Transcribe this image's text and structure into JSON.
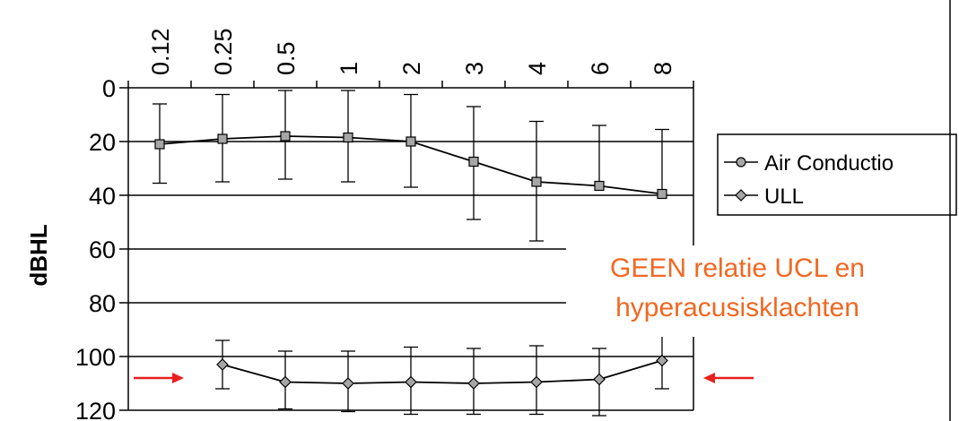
{
  "chart_data": {
    "type": "line",
    "x_axis_position": "top",
    "categories": [
      "0.12",
      "0.25",
      "0.5",
      "1",
      "2",
      "3",
      "4",
      "6",
      "8"
    ],
    "ylabel": "dBHL",
    "ylim": [
      0,
      120
    ],
    "y_inverted": true,
    "y_ticks": [
      "0",
      "20",
      "40",
      "60",
      "80",
      "100",
      "120"
    ],
    "grid": "horizontal",
    "series": [
      {
        "name": "Air Conductio",
        "marker": "square",
        "values": [
          21,
          19,
          18,
          18.5,
          20,
          27.5,
          35,
          36.5,
          39.5
        ],
        "err_low": [
          6,
          2.5,
          1,
          1,
          2.5,
          7,
          12.5,
          14,
          15.5
        ],
        "err_high": [
          35.5,
          35,
          34,
          35,
          37,
          49,
          57,
          null,
          null
        ]
      },
      {
        "name": "ULL",
        "marker": "diamond",
        "values": [
          null,
          103,
          109.5,
          110,
          109.5,
          110,
          109.5,
          108.5,
          101.5
        ],
        "err_low": [
          null,
          94,
          98,
          98,
          96.5,
          97,
          96,
          97,
          89
        ],
        "err_high": [
          null,
          112,
          119.5,
          120.5,
          121.5,
          121.5,
          121.5,
          122,
          112
        ]
      }
    ],
    "legend": {
      "position": "right",
      "entries": [
        "Air Conductio",
        "ULL"
      ]
    },
    "annotation": {
      "lines": [
        "GEEN relatie UCL en",
        "hyperacusisklachten"
      ],
      "color": "#f26722"
    },
    "arrows": {
      "color": "#e8201e",
      "y_value": 108
    },
    "colors": {
      "marker_fill": "#a6a6a6",
      "axis": "#000000",
      "text": "#000000"
    }
  }
}
